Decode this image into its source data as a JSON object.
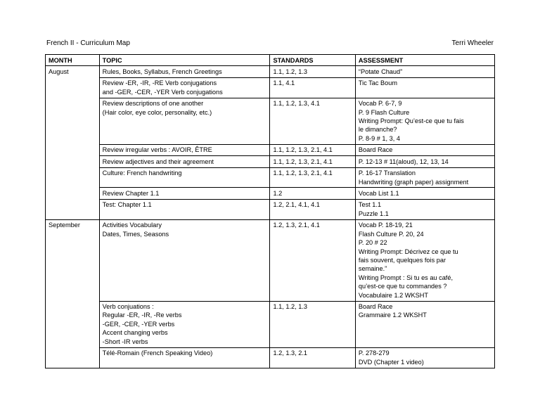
{
  "header": {
    "title_left": "French II - Curriculum Map",
    "title_right": "Terri Wheeler"
  },
  "columns": {
    "month": "MONTH",
    "topic": "TOPIC",
    "standards": "STANDARDS",
    "assessment": "ASSESSMENT"
  },
  "rows": [
    {
      "month": "August",
      "month_rowspan": 8,
      "topic": [
        "Rules, Books, Syllabus, French Greetings"
      ],
      "standards": "1.1, 1.2, 1.3",
      "assessment": [
        "“Potate Chaud”"
      ]
    },
    {
      "topic": [
        "Review -ER, -IR, -RE Verb conjugations",
        "and -GER, -CER, -YER Verb conjugations"
      ],
      "standards": "1.1, 4.1",
      "assessment": [
        "Tic Tac Boum"
      ]
    },
    {
      "topic": [
        "Review descriptions of one another",
        "(Hair color, eye color, personality, etc.)"
      ],
      "standards": "1.1, 1.2, 1.3, 4.1",
      "assessment": [
        "Vocab P. 6-7, 9",
        "P. 9 Flash Culture",
        "Writing Prompt:  Qu’est-ce que tu fais",
        "le dimanche?",
        "P. 8-9 # 1, 3, 4"
      ]
    },
    {
      "topic": [
        "Review irregular verbs :  AVOIR, ÊTRE"
      ],
      "standards": "1.1, 1.2, 1.3, 2.1, 4.1",
      "assessment": [
        "Board Race"
      ]
    },
    {
      "topic": [
        "Review adjectives and their agreement"
      ],
      "standards": "1.1, 1.2, 1.3, 2.1, 4.1",
      "assessment": [
        "P. 12-13 # 11(aloud), 12, 13, 14"
      ]
    },
    {
      "topic": [
        "Culture:  French handwriting"
      ],
      "standards": "1.1, 1.2, 1.3, 2.1, 4.1",
      "assessment": [
        "P. 16-17 Translation",
        "Handwriting (graph paper) assignment"
      ]
    },
    {
      "topic": [
        "Review Chapter 1.1"
      ],
      "standards": "1.2",
      "assessment": [
        "Vocab List 1.1"
      ]
    },
    {
      "topic": [
        "Test:  Chapter 1.1"
      ],
      "standards": "1.2, 2.1, 4.1, 4.1",
      "assessment": [
        "Test 1.1",
        "Puzzle 1.1"
      ]
    },
    {
      "month": "September",
      "month_rowspan": 3,
      "topic": [
        "Activities Vocabulary",
        "Dates, Times, Seasons"
      ],
      "standards": "1.2, 1.3, 2.1, 4.1",
      "assessment": [
        "Vocab P. 18-19, 21",
        "Flash Culture P. 20, 24",
        "P. 20 # 22",
        "Writing Prompt:  Décrivez ce que tu",
        "fais souvent, quelques fois par",
        "semaine.”",
        "Writing Prompt :  Si tu es au café,",
        "qu’est-ce que tu commandes ?",
        "Vocabulaire 1.2 WKSHT"
      ]
    },
    {
      "topic": [
        "Verb conjuations :",
        "Regular -ER, -IR, -Re verbs",
        "-GER, -CER, -YER verbs",
        "Accent changing verbs",
        "-Short -IR verbs"
      ],
      "standards": "1.1, 1.2, 1.3",
      "assessment": [
        "Board Race",
        "Grammaire 1.2 WKSHT"
      ]
    },
    {
      "topic": [
        "Télé-Romain (French Speaking Video)"
      ],
      "standards": "1.2, 1.3, 2.1",
      "assessment": [
        "P. 278-279",
        "DVD (Chapter 1 video)"
      ]
    }
  ]
}
